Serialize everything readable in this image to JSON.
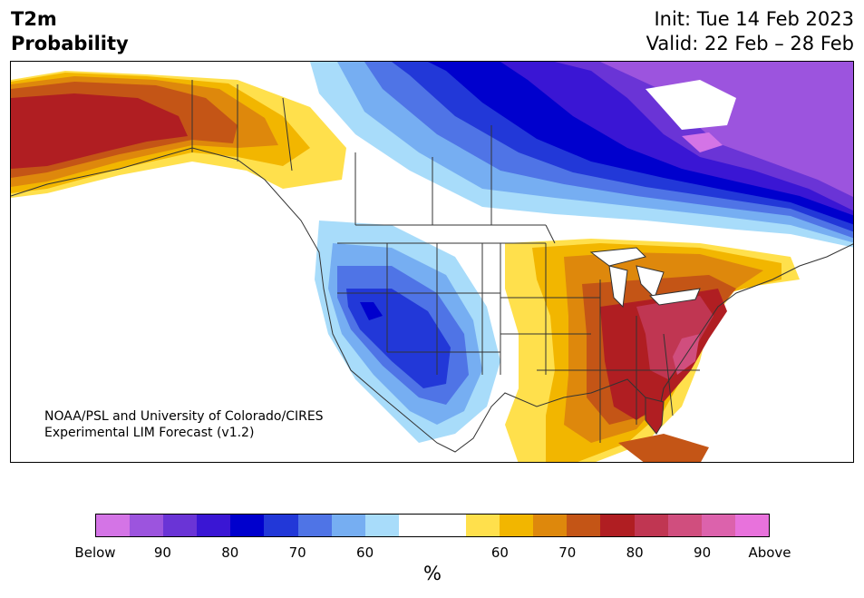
{
  "title": {
    "left_line1": "T2m",
    "left_line2": "Probability",
    "init": "Init: Tue 14 Feb 2023",
    "valid": "Valid: 22 Feb – 28 Feb"
  },
  "credit": {
    "line1": "NOAA/PSL and University of Colorado/CIRES",
    "line2": "Experimental LIM Forecast (v1.2)"
  },
  "colorbar": {
    "label": "%",
    "ticks": [
      "Below",
      "90",
      "80",
      "70",
      "60",
      "60",
      "70",
      "80",
      "90",
      "Above"
    ],
    "colors": [
      "#d474e6",
      "#9c54de",
      "#6a34d6",
      "#3a16d4",
      "#0000cd",
      "#2238d8",
      "#4f74e6",
      "#76aef2",
      "#a8dcfa",
      "#ffffff",
      "#ffffff",
      "#ffe04c",
      "#f2b600",
      "#de880c",
      "#c45516",
      "#b01e22",
      "#c03652",
      "#d04e7e",
      "#dc62ac",
      "#e872dc"
    ]
  },
  "map": {
    "layers": [
      {
        "name": "warm-west-alaska",
        "color": "#de880c"
      },
      {
        "name": "warm-east-us",
        "color": "#b01e22"
      },
      {
        "name": "cold-west-us",
        "color": "#2238d8"
      },
      {
        "name": "cold-canada",
        "color": "#0000cd"
      },
      {
        "name": "cold-arctic",
        "color": "#9c54de"
      }
    ]
  }
}
